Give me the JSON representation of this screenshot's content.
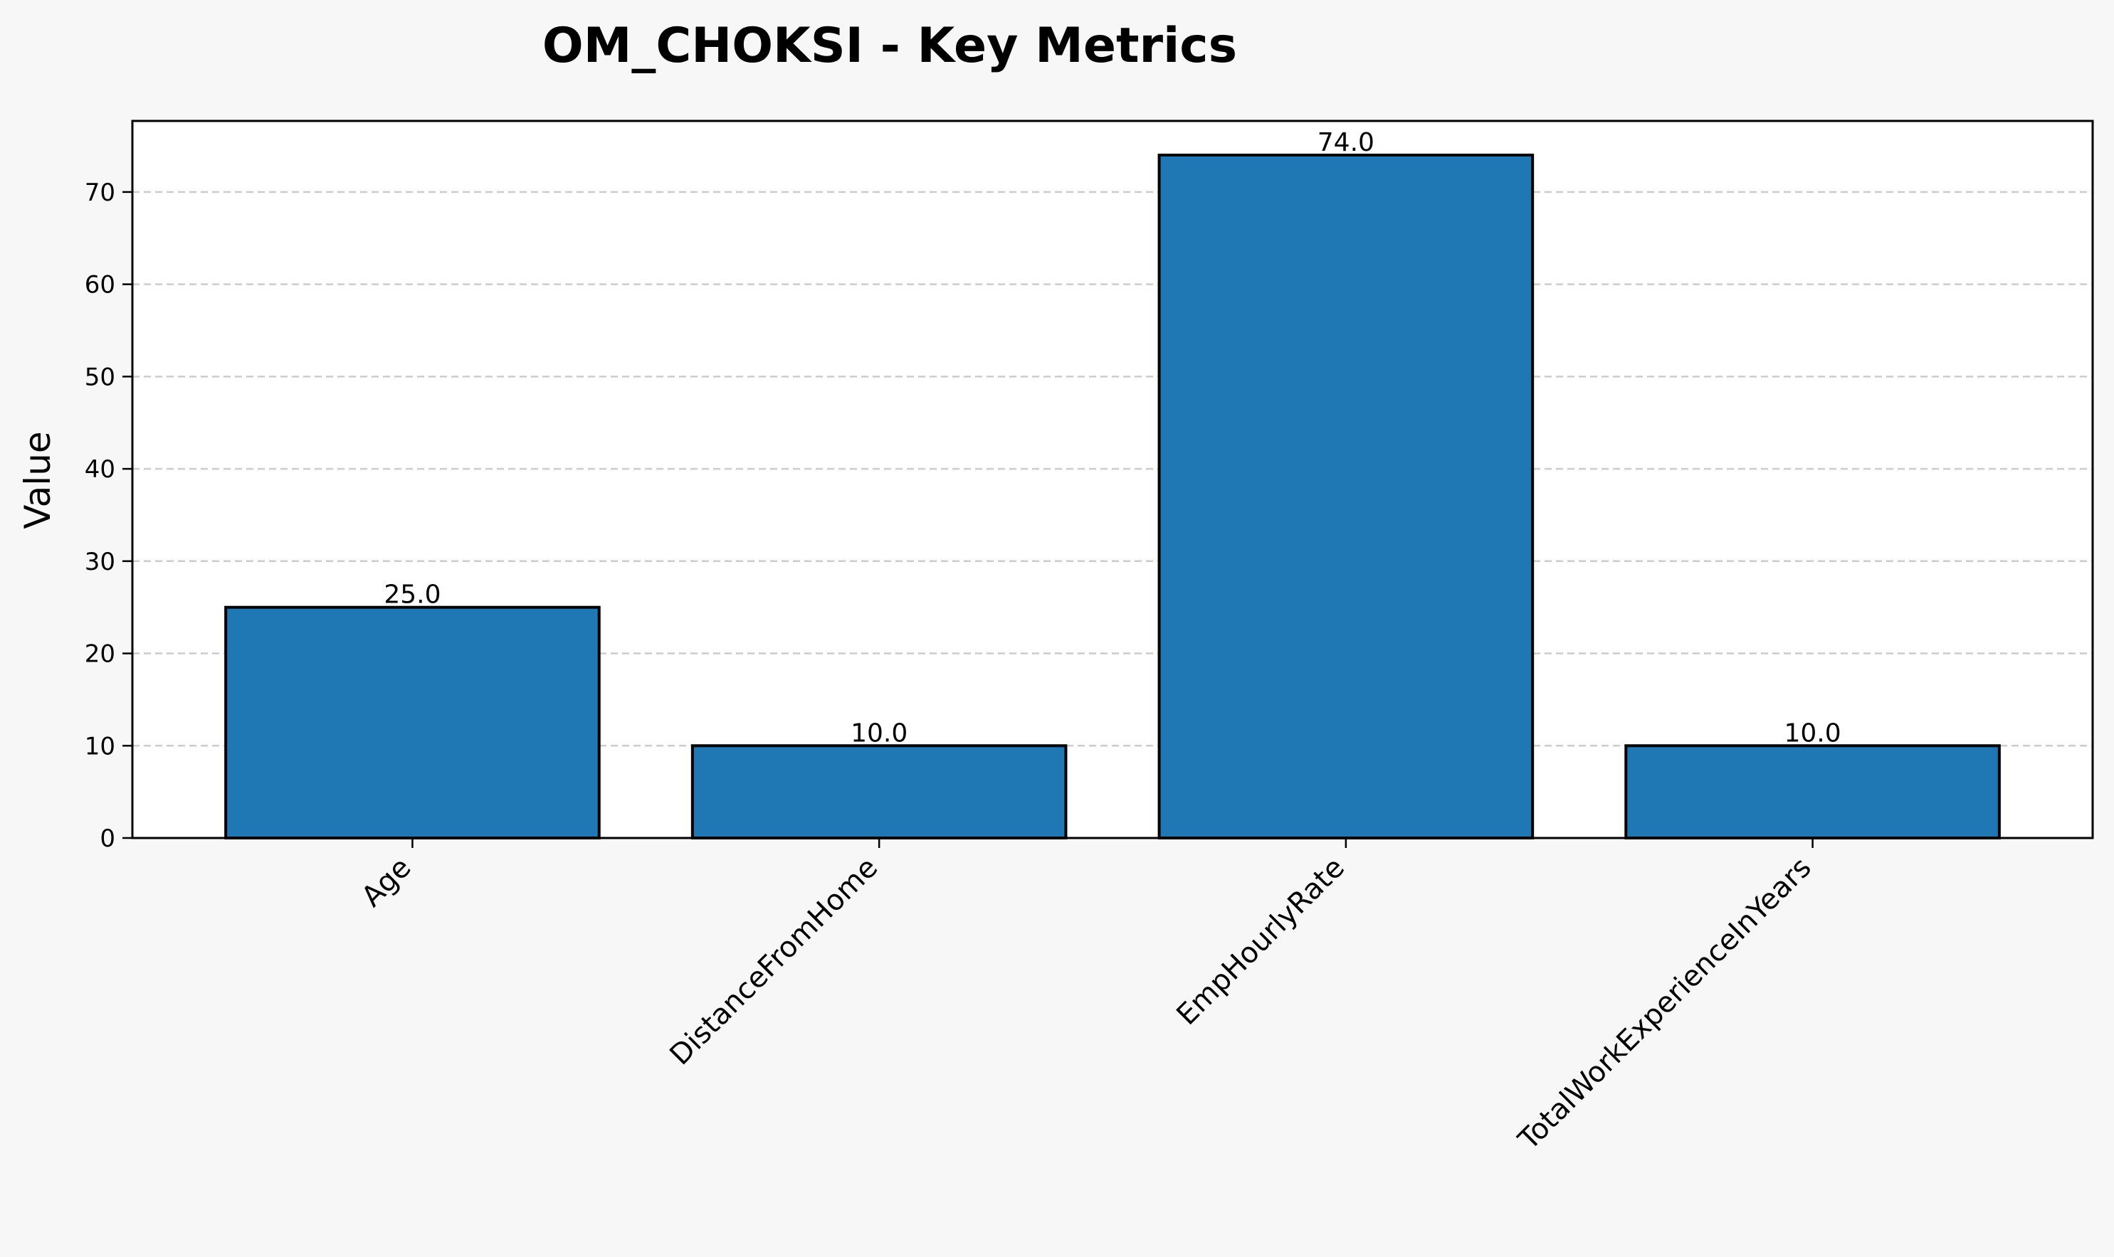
{
  "chart_data": {
    "type": "bar",
    "title": "OM_CHOKSI - Key Metrics",
    "xlabel": "",
    "ylabel": "Value",
    "categories": [
      "Age",
      "DistanceFromHome",
      "EmpHourlyRate",
      "TotalWorkExperienceInYears"
    ],
    "values": [
      25.0,
      10.0,
      74.0,
      10.0
    ],
    "data_labels": [
      "25.0",
      "10.0",
      "74.0",
      "10.0"
    ],
    "yticks": [
      0,
      10,
      20,
      30,
      40,
      50,
      60,
      70
    ],
    "ylim": [
      0,
      77.7
    ],
    "grid": "y-dashed",
    "legend": "none",
    "bar_color": "#1f77b4",
    "edge_color": "#000000",
    "background_color": "#f7f7f7",
    "plot_background_color": "#ffffff"
  }
}
